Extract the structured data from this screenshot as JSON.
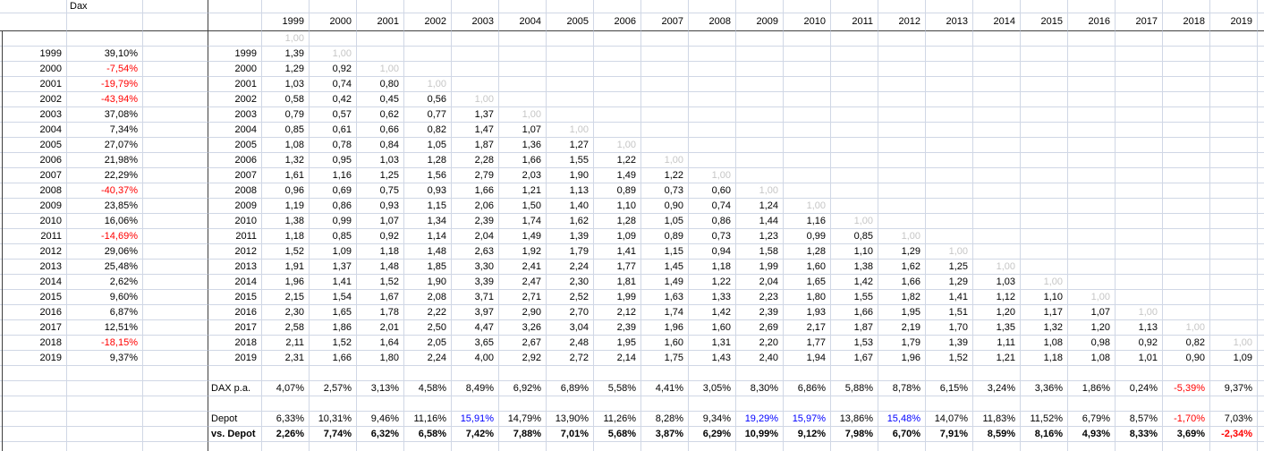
{
  "sheet": {
    "title": "Dax",
    "years": [
      "1999",
      "2000",
      "2001",
      "2002",
      "2003",
      "2004",
      "2005",
      "2006",
      "2007",
      "2008",
      "2009",
      "2010",
      "2011",
      "2012",
      "2013",
      "2014",
      "2015",
      "2016",
      "2017",
      "2018",
      "2019"
    ],
    "dax_returns": [
      "39,10%",
      "-7,54%",
      "-19,79%",
      "-43,94%",
      "37,08%",
      "7,34%",
      "27,07%",
      "21,98%",
      "22,29%",
      "-40,37%",
      "23,85%",
      "16,06%",
      "-14,69%",
      "29,06%",
      "25,48%",
      "2,62%",
      "9,60%",
      "6,87%",
      "12,51%",
      "-18,15%",
      "9,37%"
    ],
    "matrix": {
      "start_value": "1,00",
      "rows": [
        {
          "year": "1999",
          "values": [
            "1,39"
          ]
        },
        {
          "year": "2000",
          "values": [
            "1,29",
            "0,92"
          ]
        },
        {
          "year": "2001",
          "values": [
            "1,03",
            "0,74",
            "0,80"
          ]
        },
        {
          "year": "2002",
          "values": [
            "0,58",
            "0,42",
            "0,45",
            "0,56"
          ]
        },
        {
          "year": "2003",
          "values": [
            "0,79",
            "0,57",
            "0,62",
            "0,77",
            "1,37"
          ]
        },
        {
          "year": "2004",
          "values": [
            "0,85",
            "0,61",
            "0,66",
            "0,82",
            "1,47",
            "1,07"
          ]
        },
        {
          "year": "2005",
          "values": [
            "1,08",
            "0,78",
            "0,84",
            "1,05",
            "1,87",
            "1,36",
            "1,27"
          ]
        },
        {
          "year": "2006",
          "values": [
            "1,32",
            "0,95",
            "1,03",
            "1,28",
            "2,28",
            "1,66",
            "1,55",
            "1,22"
          ]
        },
        {
          "year": "2007",
          "values": [
            "1,61",
            "1,16",
            "1,25",
            "1,56",
            "2,79",
            "2,03",
            "1,90",
            "1,49",
            "1,22"
          ]
        },
        {
          "year": "2008",
          "values": [
            "0,96",
            "0,69",
            "0,75",
            "0,93",
            "1,66",
            "1,21",
            "1,13",
            "0,89",
            "0,73",
            "0,60"
          ]
        },
        {
          "year": "2009",
          "values": [
            "1,19",
            "0,86",
            "0,93",
            "1,15",
            "2,06",
            "1,50",
            "1,40",
            "1,10",
            "0,90",
            "0,74",
            "1,24"
          ]
        },
        {
          "year": "2010",
          "values": [
            "1,38",
            "0,99",
            "1,07",
            "1,34",
            "2,39",
            "1,74",
            "1,62",
            "1,28",
            "1,05",
            "0,86",
            "1,44",
            "1,16"
          ]
        },
        {
          "year": "2011",
          "values": [
            "1,18",
            "0,85",
            "0,92",
            "1,14",
            "2,04",
            "1,49",
            "1,39",
            "1,09",
            "0,89",
            "0,73",
            "1,23",
            "0,99",
            "0,85"
          ]
        },
        {
          "year": "2012",
          "values": [
            "1,52",
            "1,09",
            "1,18",
            "1,48",
            "2,63",
            "1,92",
            "1,79",
            "1,41",
            "1,15",
            "0,94",
            "1,58",
            "1,28",
            "1,10",
            "1,29"
          ]
        },
        {
          "year": "2013",
          "values": [
            "1,91",
            "1,37",
            "1,48",
            "1,85",
            "3,30",
            "2,41",
            "2,24",
            "1,77",
            "1,45",
            "1,18",
            "1,99",
            "1,60",
            "1,38",
            "1,62",
            "1,25"
          ]
        },
        {
          "year": "2014",
          "values": [
            "1,96",
            "1,41",
            "1,52",
            "1,90",
            "3,39",
            "2,47",
            "2,30",
            "1,81",
            "1,49",
            "1,22",
            "2,04",
            "1,65",
            "1,42",
            "1,66",
            "1,29",
            "1,03"
          ]
        },
        {
          "year": "2015",
          "values": [
            "2,15",
            "1,54",
            "1,67",
            "2,08",
            "3,71",
            "2,71",
            "2,52",
            "1,99",
            "1,63",
            "1,33",
            "2,23",
            "1,80",
            "1,55",
            "1,82",
            "1,41",
            "1,12",
            "1,10"
          ]
        },
        {
          "year": "2016",
          "values": [
            "2,30",
            "1,65",
            "1,78",
            "2,22",
            "3,97",
            "2,90",
            "2,70",
            "2,12",
            "1,74",
            "1,42",
            "2,39",
            "1,93",
            "1,66",
            "1,95",
            "1,51",
            "1,20",
            "1,17",
            "1,07"
          ]
        },
        {
          "year": "2017",
          "values": [
            "2,58",
            "1,86",
            "2,01",
            "2,50",
            "4,47",
            "3,26",
            "3,04",
            "2,39",
            "1,96",
            "1,60",
            "2,69",
            "2,17",
            "1,87",
            "2,19",
            "1,70",
            "1,35",
            "1,32",
            "1,20",
            "1,13"
          ]
        },
        {
          "year": "2018",
          "values": [
            "2,11",
            "1,52",
            "1,64",
            "2,05",
            "3,65",
            "2,67",
            "2,48",
            "1,95",
            "1,60",
            "1,31",
            "2,20",
            "1,77",
            "1,53",
            "1,79",
            "1,39",
            "1,11",
            "1,08",
            "0,98",
            "0,92",
            "0,82"
          ]
        },
        {
          "year": "2019",
          "values": [
            "2,31",
            "1,66",
            "1,80",
            "2,24",
            "4,00",
            "2,92",
            "2,72",
            "2,14",
            "1,75",
            "1,43",
            "2,40",
            "1,94",
            "1,67",
            "1,96",
            "1,52",
            "1,21",
            "1,18",
            "1,08",
            "1,01",
            "0,90",
            "1,09"
          ]
        }
      ]
    },
    "summary": {
      "dax_pa": {
        "label": "DAX p.a.",
        "values": [
          "4,07%",
          "2,57%",
          "3,13%",
          "4,58%",
          "8,49%",
          "6,92%",
          "6,89%",
          "5,58%",
          "4,41%",
          "3,05%",
          "8,30%",
          "6,86%",
          "5,88%",
          "8,78%",
          "6,15%",
          "3,24%",
          "3,36%",
          "1,86%",
          "0,24%",
          "-5,39%",
          "9,37%"
        ]
      },
      "depot": {
        "label": "Depot",
        "values": [
          "6,33%",
          "10,31%",
          "9,46%",
          "11,16%",
          "15,91%",
          "14,79%",
          "13,90%",
          "11,26%",
          "8,28%",
          "9,34%",
          "19,29%",
          "15,97%",
          "13,86%",
          "15,48%",
          "14,07%",
          "11,83%",
          "11,52%",
          "6,79%",
          "8,57%",
          "-1,70%",
          "7,03%"
        ],
        "blue_indices": [
          4,
          10,
          11,
          13
        ]
      },
      "vs_depot": {
        "label": "vs. Depot",
        "values": [
          "2,26%",
          "7,74%",
          "6,32%",
          "6,58%",
          "7,42%",
          "7,88%",
          "7,01%",
          "5,68%",
          "3,87%",
          "6,29%",
          "10,99%",
          "9,12%",
          "7,98%",
          "6,70%",
          "7,91%",
          "8,59%",
          "8,16%",
          "4,93%",
          "8,33%",
          "3,69%",
          "-2,34%"
        ]
      }
    }
  },
  "colors": {
    "background": "#ffffff",
    "gridline": "#d0d7e5",
    "pane_border": "#404040",
    "negative": "#ff0000",
    "depot_highlight": "#0000ff",
    "start_marker": "#c6c6c6",
    "text": "#000000"
  }
}
